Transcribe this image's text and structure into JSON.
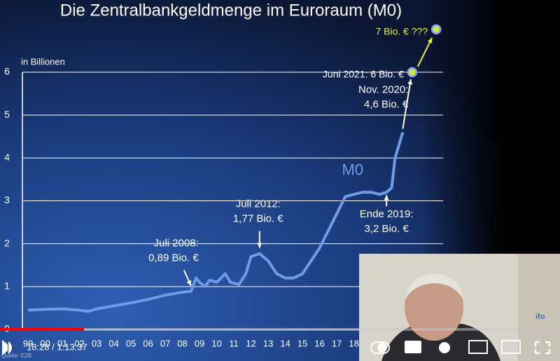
{
  "chart_data": {
    "type": "line",
    "title": "Die Zentralbankgeldmenge im Euroraum (M0)",
    "y_label": "in Billionen",
    "source": "Quelle: EZB",
    "xlim": [
      1998.67,
      2023.2
    ],
    "ylim": [
      0,
      6
    ],
    "yticks": [
      0,
      1,
      2,
      3,
      4,
      5,
      6
    ],
    "xticks": [
      {
        "value": 1999,
        "label": "99"
      },
      {
        "value": 2000,
        "label": "00"
      },
      {
        "value": 2001,
        "label": "01"
      },
      {
        "value": 2002,
        "label": "02"
      },
      {
        "value": 2003,
        "label": "03"
      },
      {
        "value": 2004,
        "label": "04"
      },
      {
        "value": 2005,
        "label": "05"
      },
      {
        "value": 2006,
        "label": "06"
      },
      {
        "value": 2007,
        "label": "07"
      },
      {
        "value": 2008,
        "label": "08"
      },
      {
        "value": 2009,
        "label": "09"
      },
      {
        "value": 2010,
        "label": "10"
      },
      {
        "value": 2011,
        "label": "11"
      },
      {
        "value": 2012,
        "label": "12"
      },
      {
        "value": 2013,
        "label": "13"
      },
      {
        "value": 2014,
        "label": "14"
      },
      {
        "value": 2015,
        "label": "15"
      },
      {
        "value": 2016,
        "label": "16"
      },
      {
        "value": 2017,
        "label": "17"
      },
      {
        "value": 2018,
        "label": "18"
      }
    ],
    "grid": true,
    "x": [
      1999,
      2000,
      2001,
      2002,
      2002.5,
      2003,
      2004,
      2005,
      2006,
      2007,
      2008,
      2008.5,
      2008.8,
      2009,
      2009.3,
      2009.6,
      2010,
      2010.5,
      2010.8,
      2011.3,
      2011.7,
      2012,
      2012.5,
      2013,
      2013.5,
      2014,
      2014.5,
      2015,
      2015.5,
      2016,
      2016.5,
      2017,
      2017.5,
      2018,
      2018.5,
      2019,
      2019.5,
      2019.9,
      2020.2,
      2020.4,
      2020.85
    ],
    "series": [
      {
        "name": "M0",
        "color": "#6f9be8",
        "values": [
          0.45,
          0.47,
          0.48,
          0.45,
          0.42,
          0.48,
          0.55,
          0.62,
          0.7,
          0.8,
          0.87,
          0.89,
          1.2,
          1.1,
          1.0,
          1.15,
          1.1,
          1.3,
          1.1,
          1.05,
          1.3,
          1.7,
          1.77,
          1.6,
          1.3,
          1.2,
          1.2,
          1.3,
          1.6,
          1.9,
          2.3,
          2.7,
          3.1,
          3.15,
          3.2,
          3.2,
          3.15,
          3.2,
          3.3,
          4.0,
          4.6
        ]
      }
    ],
    "annotations": [
      {
        "lines": [
          "Juli 2008:",
          "0,89 Bio. €"
        ],
        "x": 2008.5,
        "y": 0.89
      },
      {
        "lines": [
          "Juli 2012:",
          "1,77 Bio. €"
        ],
        "x": 2012.5,
        "y": 1.77
      },
      {
        "lines": [
          "Ende 2019:",
          "3,2 Bio. €"
        ],
        "x": 2019.9,
        "y": 3.2
      },
      {
        "lines": [
          "Nov. 2020:",
          "4,6 Bio. €"
        ],
        "x": 2020.85,
        "y": 4.6
      }
    ],
    "highlights": [
      {
        "x": 2021.4,
        "y": 6,
        "label": "Juni 2021: 6 Bio. €"
      },
      {
        "x": 2022.8,
        "y": 7,
        "label": "7 Bio. € ???"
      }
    ]
  },
  "player": {
    "time": "18:28 / 1:13:37",
    "logo": "ifo"
  }
}
